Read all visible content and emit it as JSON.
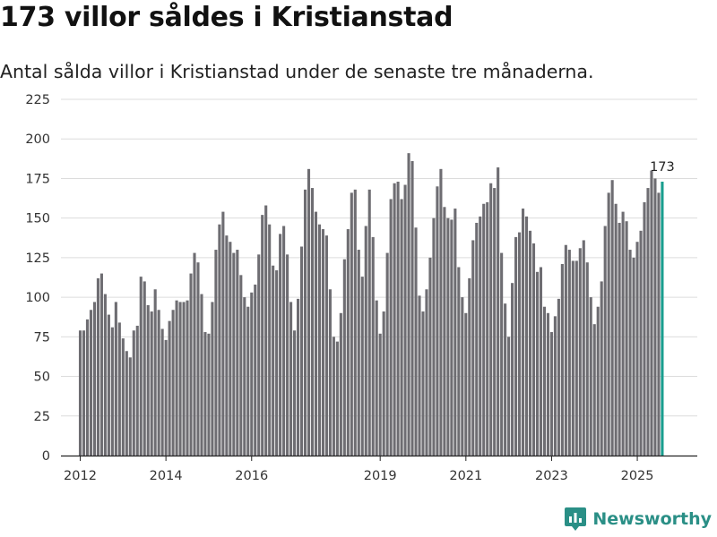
{
  "header": {
    "title": "173 villor såldes i Kristianstad",
    "subtitle": "Antal sålda villor i Kristianstad under de senaste tre månaderna."
  },
  "brand": {
    "name": "Newsworthy",
    "color": "#2a8f86"
  },
  "colors": {
    "bar": "#6e6d72",
    "highlight": "#1a9e8f",
    "grid": "#dcdcdc",
    "axis": "#222222"
  },
  "chart_data": {
    "type": "bar",
    "title": "173 villor såldes i Kristianstad",
    "subtitle": "Antal sålda villor i Kristianstad under de senaste tre månaderna.",
    "xlabel": "",
    "ylabel": "",
    "ylim": [
      0,
      225
    ],
    "yticks": [
      0,
      25,
      50,
      75,
      100,
      125,
      150,
      175,
      200,
      225
    ],
    "grid": true,
    "x_range": [
      2011.55,
      2026.4
    ],
    "xticks": [
      {
        "label": "2012",
        "pos": 2012
      },
      {
        "label": "2014",
        "pos": 2014
      },
      {
        "label": "2016",
        "pos": 2016
      },
      {
        "label": "2019",
        "pos": 2019
      },
      {
        "label": "2021",
        "pos": 2021
      },
      {
        "label": "2023",
        "pos": 2023
      },
      {
        "label": "2025",
        "pos": 2025
      }
    ],
    "x_start": 2012,
    "x_step": 0.08333,
    "values": [
      79,
      79,
      86,
      92,
      97,
      112,
      115,
      102,
      89,
      81,
      97,
      84,
      74,
      66,
      62,
      79,
      82,
      113,
      110,
      95,
      91,
      105,
      92,
      80,
      73,
      85,
      92,
      98,
      97,
      97,
      98,
      115,
      128,
      122,
      102,
      78,
      77,
      97,
      130,
      146,
      154,
      139,
      135,
      128,
      130,
      114,
      100,
      94,
      103,
      108,
      127,
      152,
      158,
      146,
      120,
      117,
      140,
      145,
      127,
      97,
      79,
      99,
      132,
      168,
      181,
      169,
      154,
      146,
      143,
      139,
      105,
      75,
      72,
      90,
      124,
      143,
      166,
      168,
      130,
      113,
      145,
      168,
      138,
      98,
      77,
      91,
      128,
      162,
      172,
      173,
      162,
      171,
      191,
      186,
      144,
      101,
      91,
      105,
      125,
      150,
      170,
      181,
      157,
      150,
      149,
      156,
      119,
      100,
      90,
      112,
      136,
      147,
      151,
      159,
      160,
      172,
      169,
      182,
      128,
      96,
      75,
      109,
      138,
      141,
      156,
      151,
      142,
      134,
      116,
      119,
      94,
      90,
      78,
      88,
      99,
      121,
      133,
      130,
      123,
      123,
      131,
      136,
      122,
      100,
      83,
      94,
      110,
      145,
      166,
      174,
      159,
      147,
      154,
      148,
      130,
      125,
      135,
      142,
      160,
      169,
      180,
      175,
      166,
      173
    ],
    "highlight_index": 163,
    "annotations": [
      {
        "text": "173",
        "index": 163
      }
    ]
  }
}
